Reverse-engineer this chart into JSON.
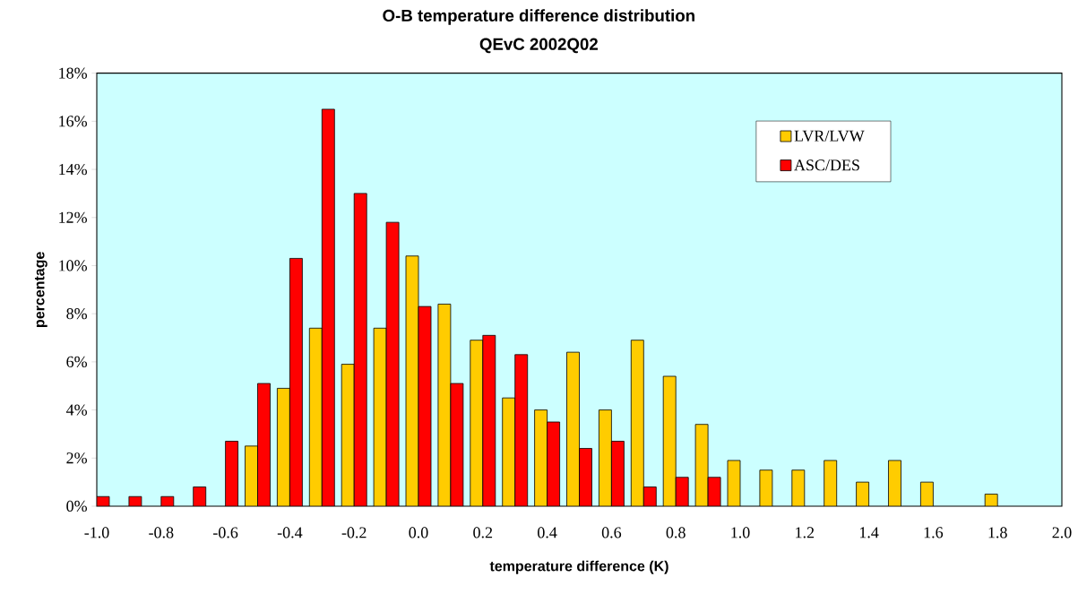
{
  "chart_data": {
    "type": "bar",
    "title": "O-B temperature difference distribution",
    "subtitle": "QEvC 2002Q02",
    "xlabel": "temperature difference (K)",
    "ylabel": "percentage",
    "x": [
      -1.0,
      -0.9,
      -0.8,
      -0.7,
      -0.6,
      -0.5,
      -0.4,
      -0.3,
      -0.2,
      -0.1,
      0.0,
      0.1,
      0.2,
      0.3,
      0.4,
      0.5,
      0.6,
      0.7,
      0.8,
      0.9,
      1.0,
      1.1,
      1.2,
      1.3,
      1.4,
      1.5,
      1.6,
      1.7,
      1.8
    ],
    "series": [
      {
        "name": "LVR/LVW",
        "color": "#ffcc00",
        "values": [
          null,
          null,
          null,
          null,
          null,
          2.5,
          4.9,
          7.4,
          5.9,
          7.4,
          10.4,
          8.4,
          6.9,
          4.5,
          4.0,
          6.4,
          4.0,
          6.9,
          5.4,
          3.4,
          1.9,
          1.5,
          1.5,
          1.9,
          1.0,
          1.9,
          1.0,
          null,
          0.5
        ]
      },
      {
        "name": "ASC/DES",
        "color": "#ff0000",
        "values": [
          0.4,
          0.4,
          0.4,
          0.8,
          2.7,
          5.1,
          10.3,
          16.5,
          13.0,
          11.8,
          8.3,
          5.1,
          7.1,
          6.3,
          3.5,
          2.4,
          2.7,
          0.8,
          1.2,
          1.2,
          null,
          null,
          null,
          null,
          null,
          null,
          null,
          null,
          null
        ]
      }
    ],
    "xlim": [
      -1.0,
      2.0
    ],
    "xticks": [
      {
        "value": -1.0,
        "label": "-1.0"
      },
      {
        "value": -0.8,
        "label": "-0.8"
      },
      {
        "value": -0.6,
        "label": "-0.6"
      },
      {
        "value": -0.4,
        "label": "-0.4"
      },
      {
        "value": -0.2,
        "label": "-0.2"
      },
      {
        "value": 0.0,
        "label": "0.0"
      },
      {
        "value": 0.2,
        "label": "0.2"
      },
      {
        "value": 0.4,
        "label": "0.4"
      },
      {
        "value": 0.6,
        "label": "0.6"
      },
      {
        "value": 0.8,
        "label": "0.8"
      },
      {
        "value": 1.0,
        "label": "1.0"
      },
      {
        "value": 1.2,
        "label": "1.2"
      },
      {
        "value": 1.4,
        "label": "1.4"
      },
      {
        "value": 1.6,
        "label": "1.6"
      },
      {
        "value": 1.8,
        "label": "1.8"
      },
      {
        "value": 2.0,
        "label": "2.0"
      }
    ],
    "ylim": [
      0,
      18
    ],
    "yticks": [
      {
        "value": 0,
        "label": "0%"
      },
      {
        "value": 2,
        "label": "2%"
      },
      {
        "value": 4,
        "label": "4%"
      },
      {
        "value": 6,
        "label": "6%"
      },
      {
        "value": 8,
        "label": "8%"
      },
      {
        "value": 10,
        "label": "10%"
      },
      {
        "value": 12,
        "label": "12%"
      },
      {
        "value": 14,
        "label": "14%"
      },
      {
        "value": 16,
        "label": "16%"
      },
      {
        "value": 18,
        "label": "18%"
      }
    ],
    "grid": false,
    "legend": "top right"
  }
}
